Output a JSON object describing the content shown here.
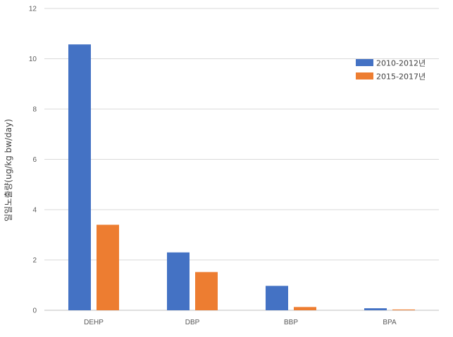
{
  "chart_data": {
    "type": "bar",
    "categories": [
      "DEHP",
      "DBP",
      "BBP",
      "BPA"
    ],
    "series": [
      {
        "name": "2010-2012년",
        "color": "#4472C4",
        "values": [
          10.57,
          2.3,
          0.97,
          0.08
        ]
      },
      {
        "name": "2015-2017년",
        "color": "#ED7D31",
        "values": [
          3.4,
          1.52,
          0.13,
          0.03
        ]
      }
    ],
    "ylabel": "일일노출량(ug/kg bw/day)",
    "xlabel": "",
    "ylim": [
      0,
      12
    ],
    "yticks": [
      0,
      2,
      4,
      6,
      8,
      10,
      12
    ],
    "grid": true,
    "legend_position": "top-right"
  }
}
